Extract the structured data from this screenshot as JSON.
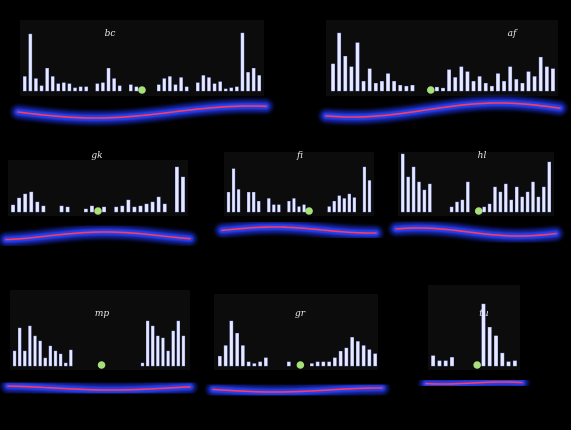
{
  "chart_data": {
    "type": "bar",
    "panels": [
      {
        "label": "bc",
        "values": [
          14,
          55,
          12,
          5,
          22,
          14,
          7,
          8,
          7,
          3,
          4,
          4,
          0,
          7,
          8,
          22,
          12,
          5,
          0,
          6,
          4,
          0,
          0,
          0,
          6,
          12,
          14,
          6,
          13,
          4,
          0,
          8,
          15,
          13,
          7,
          9,
          2,
          3,
          4,
          56,
          18,
          22,
          15
        ]
      },
      {
        "label": "af",
        "values": [
          28,
          60,
          36,
          25,
          50,
          10,
          23,
          8,
          10,
          18,
          10,
          6,
          5,
          6,
          0,
          0,
          0,
          4,
          3,
          22,
          14,
          25,
          20,
          10,
          15,
          8,
          5,
          18,
          10,
          25,
          12,
          8,
          20,
          15,
          35,
          25,
          23
        ]
      },
      {
        "label": "gk",
        "values": [
          7,
          14,
          18,
          20,
          10,
          6,
          0,
          0,
          6,
          5,
          0,
          0,
          3,
          6,
          0,
          5,
          0,
          5,
          6,
          12,
          5,
          6,
          8,
          10,
          15,
          8,
          0,
          45,
          35
        ]
      },
      {
        "label": "fi",
        "values": [
          22,
          48,
          25,
          0,
          22,
          22,
          12,
          0,
          15,
          8,
          8,
          0,
          12,
          15,
          6,
          8,
          0,
          0,
          0,
          0,
          6,
          12,
          18,
          15,
          20,
          16,
          0,
          50,
          35
        ]
      },
      {
        "label": "hl",
        "values": [
          58,
          35,
          45,
          30,
          22,
          28,
          0,
          0,
          0,
          5,
          10,
          12,
          30,
          0,
          0,
          5,
          8,
          25,
          20,
          28,
          12,
          25,
          15,
          20,
          30,
          15,
          25,
          50
        ]
      },
      {
        "label": "mp",
        "values": [
          15,
          38,
          15,
          40,
          30,
          25,
          8,
          20,
          15,
          12,
          3,
          16,
          0,
          0,
          0,
          0,
          0,
          0,
          0,
          0,
          0,
          0,
          0,
          0,
          0,
          3,
          45,
          40,
          30,
          28,
          15,
          35,
          45,
          30
        ]
      },
      {
        "label": "gr",
        "values": [
          12,
          25,
          55,
          40,
          25,
          5,
          3,
          5,
          10,
          0,
          0,
          0,
          5,
          0,
          0,
          0,
          3,
          5,
          5,
          5,
          10,
          18,
          22,
          35,
          30,
          25,
          20,
          15
        ]
      },
      {
        "label": "tu",
        "values": [
          12,
          6,
          6,
          10,
          0,
          0,
          0,
          0,
          72,
          45,
          35,
          15,
          5,
          6
        ]
      }
    ]
  }
}
